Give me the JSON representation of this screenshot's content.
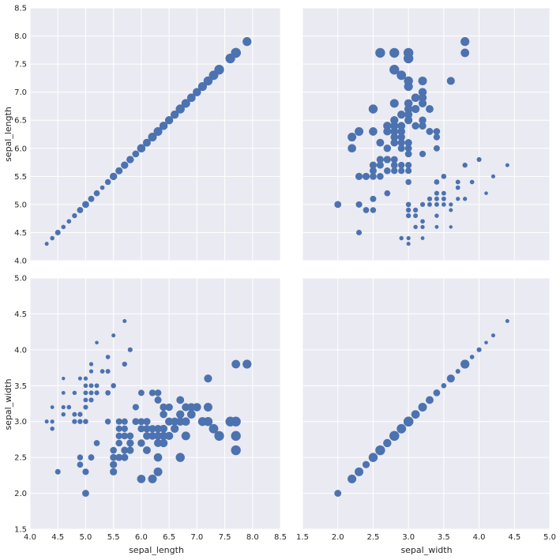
{
  "chart_data": {
    "type": "scatter",
    "layout": "pair-grid 2x2",
    "variables": [
      "sepal_length",
      "sepal_width"
    ],
    "xlabel_bottom_left": "sepal_length",
    "xlabel_bottom_right": "sepal_width",
    "ylabel_top": "sepal_length",
    "ylabel_bottom": "sepal_width",
    "sepal_length_range": [
      4.0,
      8.5
    ],
    "sepal_width_range": [
      1.5,
      5.0
    ],
    "sepal_length_ticks": [
      "4.0",
      "4.5",
      "5.0",
      "5.5",
      "6.0",
      "6.5",
      "7.0",
      "7.5",
      "8.0",
      "8.5"
    ],
    "sepal_width_ticks": [
      "1.5",
      "2.0",
      "2.5",
      "3.0",
      "3.5",
      "4.0",
      "4.5",
      "5.0"
    ],
    "point_color": "#4c72b0",
    "background_color": "#eaeaf2",
    "grid_color": "#ffffff",
    "size_encoding": "marker size grows with sepal_length minus sepal_width",
    "points": [
      [
        5.1,
        3.5
      ],
      [
        4.9,
        3.0
      ],
      [
        4.7,
        3.2
      ],
      [
        4.6,
        3.1
      ],
      [
        5.0,
        3.6
      ],
      [
        5.4,
        3.9
      ],
      [
        4.6,
        3.4
      ],
      [
        5.0,
        3.4
      ],
      [
        4.4,
        2.9
      ],
      [
        4.9,
        3.1
      ],
      [
        5.4,
        3.7
      ],
      [
        4.8,
        3.4
      ],
      [
        4.8,
        3.0
      ],
      [
        4.3,
        3.0
      ],
      [
        5.8,
        4.0
      ],
      [
        5.7,
        4.4
      ],
      [
        5.4,
        3.9
      ],
      [
        5.1,
        3.5
      ],
      [
        5.7,
        3.8
      ],
      [
        5.1,
        3.8
      ],
      [
        5.4,
        3.4
      ],
      [
        5.1,
        3.7
      ],
      [
        4.6,
        3.6
      ],
      [
        5.1,
        3.3
      ],
      [
        4.8,
        3.4
      ],
      [
        5.0,
        3.0
      ],
      [
        5.0,
        3.4
      ],
      [
        5.2,
        3.5
      ],
      [
        5.2,
        3.4
      ],
      [
        4.7,
        3.2
      ],
      [
        4.8,
        3.1
      ],
      [
        5.4,
        3.4
      ],
      [
        5.2,
        4.1
      ],
      [
        5.5,
        4.2
      ],
      [
        4.9,
        3.1
      ],
      [
        5.0,
        3.2
      ],
      [
        5.5,
        3.5
      ],
      [
        4.9,
        3.6
      ],
      [
        4.4,
        3.0
      ],
      [
        5.1,
        3.4
      ],
      [
        5.0,
        3.5
      ],
      [
        4.5,
        2.3
      ],
      [
        4.4,
        3.2
      ],
      [
        5.0,
        3.5
      ],
      [
        5.1,
        3.8
      ],
      [
        4.8,
        3.0
      ],
      [
        5.1,
        3.8
      ],
      [
        4.6,
        3.2
      ],
      [
        5.3,
        3.7
      ],
      [
        5.0,
        3.3
      ],
      [
        7.0,
        3.2
      ],
      [
        6.4,
        3.2
      ],
      [
        6.9,
        3.1
      ],
      [
        5.5,
        2.3
      ],
      [
        6.5,
        2.8
      ],
      [
        5.7,
        2.8
      ],
      [
        6.3,
        3.3
      ],
      [
        4.9,
        2.4
      ],
      [
        6.6,
        2.9
      ],
      [
        5.2,
        2.7
      ],
      [
        5.0,
        2.0
      ],
      [
        5.9,
        3.0
      ],
      [
        6.0,
        2.2
      ],
      [
        6.1,
        2.9
      ],
      [
        5.6,
        2.9
      ],
      [
        6.7,
        3.1
      ],
      [
        5.6,
        3.0
      ],
      [
        5.8,
        2.7
      ],
      [
        6.2,
        2.2
      ],
      [
        5.6,
        2.5
      ],
      [
        5.9,
        3.2
      ],
      [
        6.1,
        2.8
      ],
      [
        6.3,
        2.5
      ],
      [
        6.1,
        2.8
      ],
      [
        6.4,
        2.9
      ],
      [
        6.6,
        3.0
      ],
      [
        6.8,
        2.8
      ],
      [
        6.7,
        3.0
      ],
      [
        6.0,
        2.9
      ],
      [
        5.7,
        2.6
      ],
      [
        5.5,
        2.4
      ],
      [
        5.5,
        2.4
      ],
      [
        5.8,
        2.7
      ],
      [
        6.0,
        2.7
      ],
      [
        5.4,
        3.0
      ],
      [
        6.0,
        3.4
      ],
      [
        6.7,
        3.1
      ],
      [
        6.3,
        2.3
      ],
      [
        5.6,
        3.0
      ],
      [
        5.5,
        2.5
      ],
      [
        5.5,
        2.6
      ],
      [
        6.1,
        3.0
      ],
      [
        5.8,
        2.6
      ],
      [
        5.0,
        2.3
      ],
      [
        5.6,
        2.7
      ],
      [
        5.7,
        3.0
      ],
      [
        5.7,
        2.9
      ],
      [
        6.2,
        2.9
      ],
      [
        5.1,
        2.5
      ],
      [
        5.7,
        2.8
      ],
      [
        6.3,
        3.3
      ],
      [
        5.8,
        2.7
      ],
      [
        7.1,
        3.0
      ],
      [
        6.3,
        2.9
      ],
      [
        6.5,
        3.0
      ],
      [
        7.6,
        3.0
      ],
      [
        4.9,
        2.5
      ],
      [
        7.3,
        2.9
      ],
      [
        6.7,
        2.5
      ],
      [
        7.2,
        3.6
      ],
      [
        6.5,
        3.2
      ],
      [
        6.4,
        2.7
      ],
      [
        6.8,
        3.0
      ],
      [
        5.7,
        2.5
      ],
      [
        5.8,
        2.8
      ],
      [
        6.4,
        3.2
      ],
      [
        6.5,
        3.0
      ],
      [
        7.7,
        3.8
      ],
      [
        7.7,
        2.6
      ],
      [
        6.0,
        2.2
      ],
      [
        6.9,
        3.2
      ],
      [
        5.6,
        2.8
      ],
      [
        7.7,
        2.8
      ],
      [
        6.3,
        2.7
      ],
      [
        6.7,
        3.3
      ],
      [
        7.2,
        3.2
      ],
      [
        6.2,
        2.8
      ],
      [
        6.1,
        3.0
      ],
      [
        6.4,
        2.8
      ],
      [
        7.2,
        3.0
      ],
      [
        7.4,
        2.8
      ],
      [
        7.9,
        3.8
      ],
      [
        6.4,
        2.8
      ],
      [
        6.3,
        2.8
      ],
      [
        6.1,
        2.6
      ],
      [
        7.7,
        3.0
      ],
      [
        6.3,
        3.4
      ],
      [
        6.4,
        3.1
      ],
      [
        6.0,
        3.0
      ],
      [
        6.9,
        3.1
      ],
      [
        6.7,
        3.1
      ],
      [
        6.9,
        3.1
      ],
      [
        5.8,
        2.7
      ],
      [
        6.8,
        3.2
      ],
      [
        6.7,
        3.3
      ],
      [
        6.7,
        3.0
      ],
      [
        6.3,
        2.5
      ],
      [
        6.5,
        3.0
      ],
      [
        6.2,
        3.4
      ],
      [
        5.9,
        3.0
      ]
    ]
  }
}
